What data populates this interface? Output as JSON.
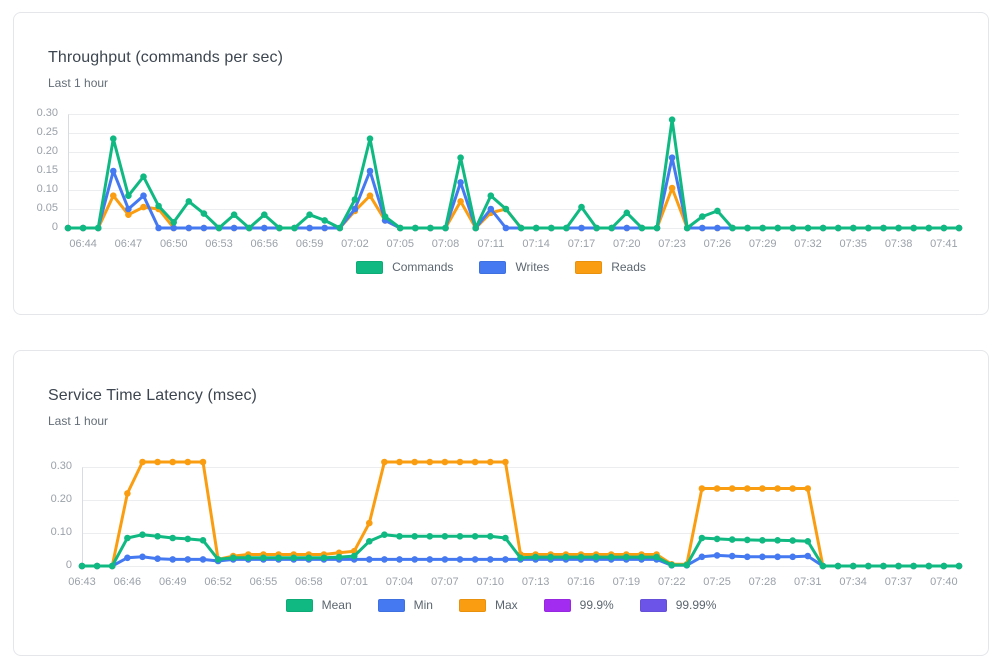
{
  "page": {
    "background": "#ffffff"
  },
  "theme": {
    "grid_color": "#ecedef",
    "axis_color": "#d8dbe0",
    "tick_color": "#9aa1a9",
    "title_color": "#3d4650",
    "subtitle_color": "#646e78",
    "legend_text_color": "#5c6670",
    "card_border": "#e4e6ea"
  },
  "chart_data": [
    {
      "type": "line",
      "title": "Throughput (commands per sec)",
      "subtitle": "Last 1 hour",
      "grid": "horizontal",
      "legend_position": "bottom-center",
      "ylim": [
        0,
        0.32
      ],
      "y_ticks": [
        "0",
        "0.05",
        "0.10",
        "0.15",
        "0.20",
        "0.25",
        "0.30"
      ],
      "x_ticks": [
        "06:44",
        "06:47",
        "06:50",
        "06:53",
        "06:56",
        "06:59",
        "07:02",
        "07:05",
        "07:08",
        "07:11",
        "07:14",
        "07:17",
        "07:20",
        "07:23",
        "07:26",
        "07:29",
        "07:32",
        "07:35",
        "07:38",
        "07:41"
      ],
      "num_points": 60,
      "series": [
        {
          "name": "Commands",
          "color": "#10b981",
          "values": [
            0,
            0,
            0,
            0.235,
            0.085,
            0.135,
            0.058,
            0.015,
            0.07,
            0.038,
            0,
            0.035,
            0,
            0.035,
            0,
            0,
            0.035,
            0.02,
            0,
            0.075,
            0.235,
            0.03,
            0,
            0,
            0,
            0,
            0.185,
            0,
            0.085,
            0.05,
            0,
            0,
            0,
            0,
            0.055,
            0,
            0,
            0.04,
            0,
            0,
            0.285,
            0,
            0.03,
            0.045,
            0,
            0,
            0,
            0,
            0,
            0,
            0,
            0,
            0,
            0,
            0,
            0,
            0,
            0,
            0,
            0
          ]
        },
        {
          "name": "Writes",
          "color": "#4479f2",
          "values": [
            0,
            0,
            0,
            0.15,
            0.05,
            0.085,
            0,
            0,
            0,
            0,
            0,
            0,
            0,
            0,
            0,
            0,
            0,
            0,
            0,
            0.05,
            0.15,
            0.02,
            0,
            0,
            0,
            0,
            0.12,
            0,
            0.05,
            0,
            0,
            0,
            0,
            0,
            0,
            0,
            0,
            0,
            0,
            0,
            0.185,
            0,
            0,
            0,
            0,
            0,
            0,
            0,
            0,
            0,
            0,
            0,
            0,
            0,
            0,
            0,
            0,
            0,
            0,
            0
          ]
        },
        {
          "name": "Reads",
          "color": "#fa9d10",
          "values": [
            0,
            0,
            0,
            0.085,
            0.035,
            0.055,
            0.05,
            0,
            0,
            0,
            0,
            0,
            0,
            0,
            0,
            0,
            0,
            0,
            0,
            0.045,
            0.085,
            0.02,
            0,
            0,
            0,
            0,
            0.07,
            0,
            0.04,
            0.05,
            0,
            0,
            0,
            0,
            0,
            0,
            0,
            0,
            0,
            0,
            0.105,
            0,
            0,
            0,
            0,
            0,
            0,
            0,
            0,
            0,
            0,
            0,
            0,
            0,
            0,
            0,
            0,
            0,
            0,
            0
          ]
        }
      ]
    },
    {
      "type": "line",
      "title": "Service Time Latency (msec)",
      "subtitle": "Last 1 hour",
      "grid": "horizontal",
      "legend_position": "bottom-center",
      "ylim": [
        0,
        0.36
      ],
      "y_ticks": [
        "0",
        "0.10",
        "0.20",
        "0.30"
      ],
      "x_ticks": [
        "06:43",
        "06:46",
        "06:49",
        "06:52",
        "06:55",
        "06:58",
        "07:01",
        "07:04",
        "07:07",
        "07:10",
        "07:13",
        "07:16",
        "07:19",
        "07:22",
        "07:25",
        "07:28",
        "07:31",
        "07:34",
        "07:37",
        "07:40"
      ],
      "num_points": 59,
      "series": [
        {
          "name": "Mean",
          "color": "#10b981",
          "values": [
            0,
            0,
            0,
            0.085,
            0.095,
            0.09,
            0.085,
            0.082,
            0.078,
            0.02,
            0.025,
            0.025,
            0.025,
            0.025,
            0.025,
            0.025,
            0.025,
            0.027,
            0.03,
            0.075,
            0.095,
            0.09,
            0.09,
            0.09,
            0.09,
            0.09,
            0.09,
            0.09,
            0.085,
            0.025,
            0.027,
            0.027,
            0.027,
            0.027,
            0.027,
            0.027,
            0.027,
            0.027,
            0.027,
            0.003,
            0.003,
            0.085,
            0.082,
            0.08,
            0.079,
            0.078,
            0.078,
            0.077,
            0.075,
            0,
            0,
            0,
            0,
            0,
            0,
            0,
            0,
            0,
            0
          ]
        },
        {
          "name": "Min",
          "color": "#4479f2",
          "values": [
            0,
            0,
            0,
            0.025,
            0.028,
            0.022,
            0.02,
            0.02,
            0.02,
            0.015,
            0.02,
            0.02,
            0.02,
            0.02,
            0.02,
            0.02,
            0.02,
            0.02,
            0.02,
            0.02,
            0.02,
            0.02,
            0.02,
            0.02,
            0.02,
            0.02,
            0.02,
            0.02,
            0.02,
            0.02,
            0.02,
            0.02,
            0.02,
            0.02,
            0.02,
            0.02,
            0.02,
            0.02,
            0.02,
            0.002,
            0.002,
            0.028,
            0.032,
            0.03,
            0.028,
            0.028,
            0.028,
            0.028,
            0.03,
            0,
            0,
            0,
            0,
            0,
            0,
            0,
            0,
            0,
            0
          ]
        },
        {
          "name": "Max",
          "color": "#fa9d10",
          "values": [
            0,
            0,
            0,
            0.22,
            0.315,
            0.315,
            0.315,
            0.315,
            0.315,
            0.02,
            0.03,
            0.035,
            0.035,
            0.035,
            0.035,
            0.035,
            0.035,
            0.04,
            0.045,
            0.13,
            0.315,
            0.315,
            0.315,
            0.315,
            0.315,
            0.315,
            0.315,
            0.315,
            0.315,
            0.035,
            0.035,
            0.035,
            0.035,
            0.035,
            0.035,
            0.035,
            0.035,
            0.035,
            0.035,
            0.005,
            0.005,
            0.235,
            0.235,
            0.235,
            0.235,
            0.235,
            0.235,
            0.235,
            0.235,
            0,
            0,
            0,
            0,
            0,
            0,
            0,
            0,
            0,
            0
          ]
        },
        {
          "name": "99.9%",
          "color": "#a32cf1",
          "values": []
        },
        {
          "name": "99.99%",
          "color": "#6d54e9",
          "values": []
        }
      ]
    }
  ]
}
